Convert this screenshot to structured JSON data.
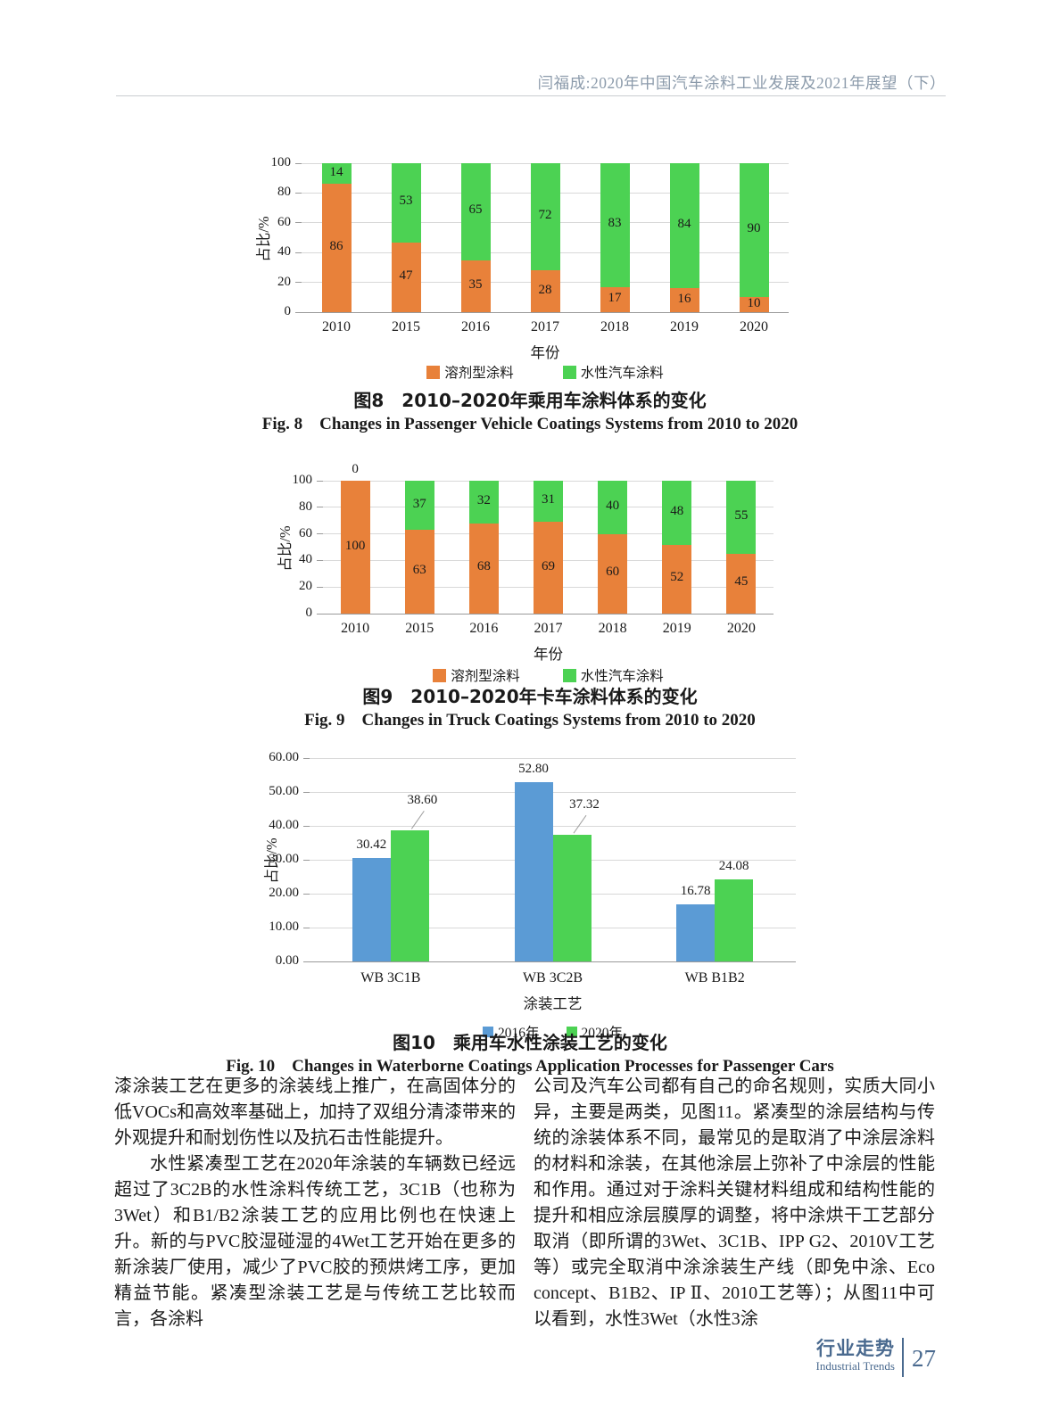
{
  "header": {
    "title": "闫福成:2020年中国汽车涂料工业发展及2021年展望（下）"
  },
  "figures": {
    "fig8": {
      "caption_cn": "图8　2010–2020年乘用车涂料体系的变化",
      "caption_en": "Fig. 8　Changes in Passenger Vehicle Coatings Systems from 2010 to 2020"
    },
    "fig9": {
      "caption_cn": "图9　2010–2020年卡车涂料体系的变化",
      "caption_en": "Fig. 9　Changes in Truck Coatings Systems from 2010 to 2020"
    },
    "fig10": {
      "caption_cn": "图10　乘用车水性涂装工艺的变化",
      "caption_en": "Fig. 10　Changes in Waterborne Coatings Application Processes for Passenger Cars"
    }
  },
  "chart_data": [
    {
      "id": "fig8",
      "type": "bar",
      "stacked": true,
      "categories": [
        "2010",
        "2015",
        "2016",
        "2017",
        "2018",
        "2019",
        "2020"
      ],
      "series": [
        {
          "name": "溶剂型涂料",
          "color": "#E8813A",
          "values": [
            86,
            47,
            35,
            28,
            17,
            16,
            10
          ]
        },
        {
          "name": "水性汽车涂料",
          "color": "#4CD253",
          "values": [
            14,
            53,
            65,
            72,
            83,
            84,
            90
          ]
        }
      ],
      "xlabel": "年份",
      "ylabel": "占比/%",
      "ylim": [
        0,
        100
      ],
      "yticks": [
        "0",
        "20",
        "40",
        "60",
        "80",
        "100"
      ],
      "grid": true,
      "legend_position": "bottom"
    },
    {
      "id": "fig9",
      "type": "bar",
      "stacked": true,
      "categories": [
        "2010",
        "2015",
        "2016",
        "2017",
        "2018",
        "2019",
        "2020"
      ],
      "series": [
        {
          "name": "溶剂型涂料",
          "color": "#E8813A",
          "values": [
            100,
            63,
            68,
            69,
            60,
            52,
            45
          ]
        },
        {
          "name": "水性汽车涂料",
          "color": "#4CD253",
          "values": [
            0,
            37,
            32,
            31,
            40,
            48,
            55
          ]
        }
      ],
      "xlabel": "年份",
      "ylabel": "占比/%",
      "ylim": [
        0,
        100
      ],
      "yticks": [
        "0",
        "20",
        "40",
        "60",
        "80",
        "100"
      ],
      "grid": true,
      "legend_position": "bottom"
    },
    {
      "id": "fig10",
      "type": "bar",
      "stacked": false,
      "categories": [
        "WB 3C1B",
        "WB 3C2B",
        "WB B1B2"
      ],
      "series": [
        {
          "name": "2016年",
          "color": "#5B9BD5",
          "values": [
            30.42,
            52.8,
            16.78
          ]
        },
        {
          "name": "2020年",
          "color": "#4CD253",
          "values": [
            38.6,
            37.32,
            24.08
          ]
        }
      ],
      "value_labels": [
        [
          "30.42",
          "52.80",
          "16.78"
        ],
        [
          "38.60",
          "37.32",
          "24.08"
        ]
      ],
      "leader_lines": [
        {
          "series": 1,
          "index": 0
        },
        {
          "series": 1,
          "index": 1
        }
      ],
      "xlabel": "涂装工艺",
      "ylabel": "占比/%",
      "ylim": [
        0,
        60
      ],
      "yticks": [
        "0.00",
        "10.00",
        "20.00",
        "30.00",
        "40.00",
        "50.00",
        "60.00"
      ],
      "grid": true,
      "legend_position": "bottom"
    }
  ],
  "body": {
    "left": [
      "漆涂装工艺在更多的涂装线上推广，在高固体分的低VOCs和高效率基础上，加持了双组分清漆带来的外观提升和耐划伤性以及抗石击性能提升。",
      "水性紧凑型工艺在2020年涂装的车辆数已经远超过了3C2B的水性涂料传统工艺，3C1B（也称为3Wet）和B1/B2涂装工艺的应用比例也在快速上升。新的与PVC胶湿碰湿的4Wet工艺开始在更多的新涂装厂使用，减少了PVC胶的预烘烤工序，更加精益节能。紧凑型涂装工艺是与传统工艺比较而言，各涂料"
    ],
    "right": [
      "公司及汽车公司都有自己的命名规则，实质大同小异，主要是两类，见图11。紧凑型的涂层结构与传统的涂装体系不同，最常见的是取消了中涂层涂料的材料和涂装，在其他涂层上弥补了中涂层的性能和作用。通过对于涂料关键材料组成和结构性能的提升和相应涂层膜厚的调整，将中涂烘干工艺部分取消（即所谓的3Wet、3C1B、IPP G2、2010V工艺等）或完全取消中涂涂装生产线（即免中涂、Eco concept、B1B2、IP Ⅱ、2010工艺等）；从图11中可以看到，水性3Wet（水性3涂"
    ]
  },
  "footer": {
    "section_cn": "行业走势",
    "section_en": "Industrial Trends",
    "page_number": "27"
  },
  "colors": {
    "orange": "#E8813A",
    "green": "#4CD253",
    "blue": "#5B9BD5",
    "grid": "#D8D8D8",
    "axis": "#9A9A9A",
    "leader": "#A0A0A0",
    "header_text": "#8C9BAB",
    "footer_text": "#4A6A8F"
  }
}
